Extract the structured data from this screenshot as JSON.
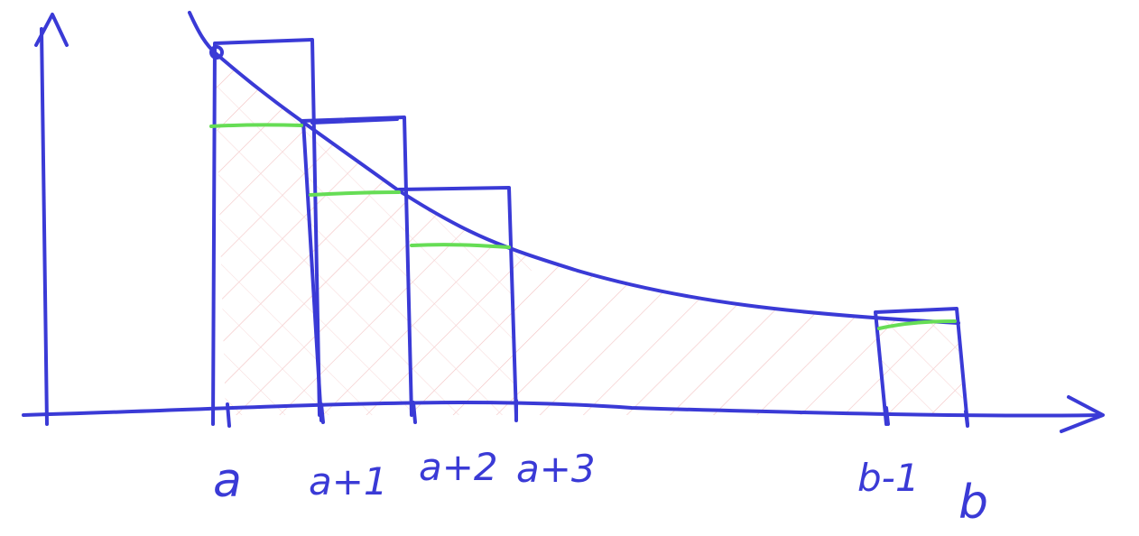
{
  "colors": {
    "ink": "#3a3ad6",
    "highlight": "#66dd55",
    "hatch": "#f0b7b7",
    "background": "#ffffff"
  },
  "labels": {
    "a": "a",
    "a_plus_1": "a+1",
    "a_plus_2": "a+2",
    "a_plus_3": "a+3",
    "b_minus_1": "b-1",
    "b": "b"
  }
}
